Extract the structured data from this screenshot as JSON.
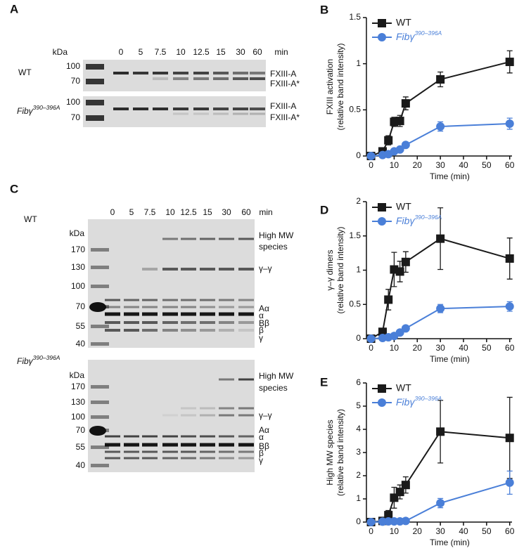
{
  "gels": [
    {
      "label": "A",
      "kda": "kDa",
      "lanes": [
        "0",
        "5",
        "7.5",
        "10",
        "12.5",
        "15",
        "30",
        "60"
      ],
      "lane_unit": "min",
      "blots": [
        {
          "name": "WT",
          "markers": [
            "100",
            "70"
          ],
          "bands": [
            "FXIII-A",
            "FXIII-A*"
          ]
        },
        {
          "name": "Fibγ390–396A",
          "markers": [
            "100",
            "70"
          ],
          "bands": [
            "FXIII-A",
            "FXIII-A*"
          ]
        }
      ]
    },
    {
      "label": "C",
      "kda": "kDa",
      "lanes": [
        "0",
        "5",
        "7.5",
        "10",
        "12.5",
        "15",
        "30",
        "60"
      ],
      "lane_unit": "min",
      "blots": [
        {
          "name": "WT",
          "markers": [
            "170",
            "130",
            "100",
            "70",
            "55",
            "40"
          ],
          "bands": [
            [
              "High MW",
              "species"
            ],
            "γ–γ",
            "Aα",
            "α",
            "Bβ",
            "β",
            "γ"
          ]
        },
        {
          "name": "Fibγ390–396A",
          "markers": [
            "170",
            "130",
            "100",
            "70",
            "55",
            "40"
          ],
          "bands": [
            [
              "High MW",
              "species"
            ],
            "γ–γ",
            "Aα",
            "α",
            "Bβ",
            "β",
            "γ"
          ]
        }
      ]
    }
  ],
  "chart_data": [
    {
      "type": "line",
      "panel": "B",
      "ylabel": [
        "FXIII activation",
        "(relative band intensity)"
      ],
      "xlabel": "Time (min)",
      "xlim": [
        -2,
        61
      ],
      "xticks": [
        0,
        10,
        20,
        30,
        40,
        50,
        60
      ],
      "ylim": [
        0,
        1.5
      ],
      "yticks": [
        0,
        0.5,
        1,
        1.5
      ],
      "legend": "top-left",
      "x": [
        0,
        5,
        7.5,
        10,
        12.5,
        15,
        30,
        60
      ],
      "series": [
        {
          "name": "WT",
          "color": "#1a1a1a",
          "marker": "square",
          "values": [
            0,
            0.05,
            0.17,
            0.37,
            0.38,
            0.57,
            0.83,
            1.02
          ],
          "errors": [
            0,
            0.02,
            0.05,
            0.05,
            0.06,
            0.07,
            0.08,
            0.12
          ]
        },
        {
          "name": "Fibγ390–396A",
          "color": "#4a7fd8",
          "marker": "circle",
          "values": [
            0,
            0.01,
            0.02,
            0.05,
            0.07,
            0.12,
            0.32,
            0.35
          ],
          "errors": [
            0,
            0,
            0,
            0.01,
            0.01,
            0.02,
            0.05,
            0.06
          ]
        }
      ]
    },
    {
      "type": "line",
      "panel": "D",
      "ylabel": [
        "γ–γ dimers",
        "(relative band intensity)"
      ],
      "xlabel": "Time (min)",
      "xlim": [
        -2,
        61
      ],
      "xticks": [
        0,
        10,
        20,
        30,
        40,
        50,
        60
      ],
      "ylim": [
        0,
        2
      ],
      "yticks": [
        0,
        0.5,
        1,
        1.5,
        2
      ],
      "legend": "top-left",
      "x": [
        0,
        5,
        7.5,
        10,
        12.5,
        15,
        30,
        60
      ],
      "series": [
        {
          "name": "WT",
          "color": "#1a1a1a",
          "marker": "square",
          "values": [
            0,
            0.1,
            0.57,
            1.01,
            0.98,
            1.12,
            1.46,
            1.17
          ],
          "errors": [
            0,
            0.02,
            0.15,
            0.25,
            0.15,
            0.15,
            0.45,
            0.3
          ]
        },
        {
          "name": "Fibγ390–396A",
          "color": "#4a7fd8",
          "marker": "circle",
          "values": [
            0,
            0.01,
            0.02,
            0.04,
            0.09,
            0.15,
            0.44,
            0.47
          ],
          "errors": [
            0,
            0,
            0,
            0.01,
            0.02,
            0.02,
            0.06,
            0.07
          ]
        }
      ]
    },
    {
      "type": "line",
      "panel": "E",
      "ylabel": [
        "High MW species",
        "(relative band intensity)"
      ],
      "xlabel": "Time (min)",
      "xlim": [
        -2,
        61
      ],
      "xticks": [
        0,
        10,
        20,
        30,
        40,
        50,
        60
      ],
      "ylim": [
        0,
        6
      ],
      "yticks": [
        0,
        1,
        2,
        3,
        4,
        5,
        6
      ],
      "legend": "top-left",
      "x": [
        0,
        5,
        7.5,
        10,
        12.5,
        15,
        30,
        60
      ],
      "series": [
        {
          "name": "WT",
          "color": "#1a1a1a",
          "marker": "square",
          "values": [
            0,
            0.05,
            0.3,
            1.05,
            1.3,
            1.6,
            3.9,
            3.63
          ],
          "errors": [
            0,
            0.02,
            0.2,
            0.45,
            0.3,
            0.35,
            1.35,
            1.75
          ]
        },
        {
          "name": "Fibγ390–396A",
          "color": "#4a7fd8",
          "marker": "circle",
          "values": [
            0,
            0.02,
            0.03,
            0.03,
            0.03,
            0.05,
            0.82,
            1.7
          ],
          "errors": [
            0,
            0,
            0,
            0.01,
            0.01,
            0.01,
            0.2,
            0.5
          ]
        }
      ]
    }
  ]
}
